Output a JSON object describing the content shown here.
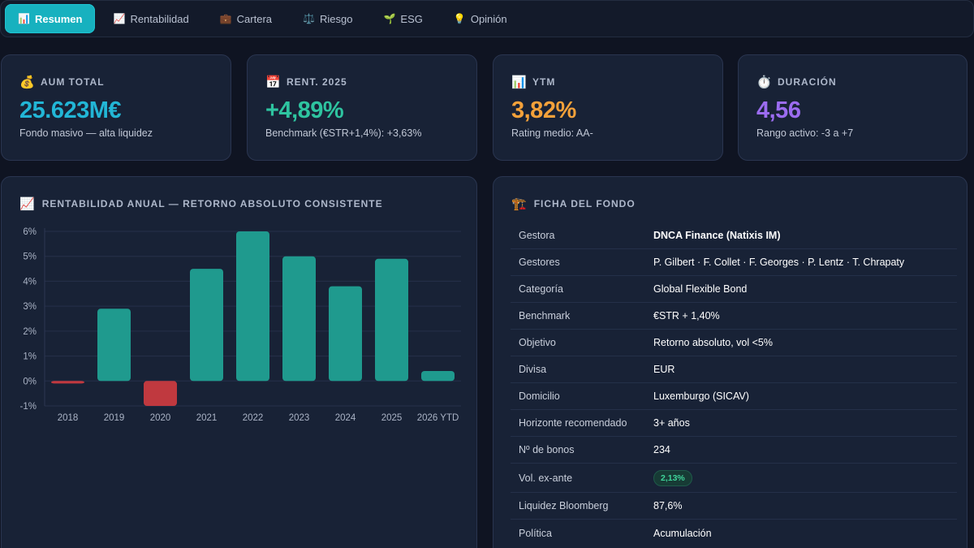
{
  "nav": {
    "tabs": [
      {
        "icon": "📊",
        "label": "Resumen",
        "active": true
      },
      {
        "icon": "📈",
        "label": "Rentabilidad",
        "active": false
      },
      {
        "icon": "💼",
        "label": "Cartera",
        "active": false
      },
      {
        "icon": "⚖️",
        "label": "Riesgo",
        "active": false
      },
      {
        "icon": "🌱",
        "label": "ESG",
        "active": false
      },
      {
        "icon": "💡",
        "label": "Opinión",
        "active": false
      }
    ]
  },
  "kpis": [
    {
      "icon": "💰",
      "label": "AUM TOTAL",
      "value": "25.623M€",
      "sub": "Fondo masivo — alta liquidez",
      "color": "#22b6d6"
    },
    {
      "icon": "📅",
      "label": "RENT. 2025",
      "value": "+4,89%",
      "sub": "Benchmark (€STR+1,4%): +3,63%",
      "color": "#2ec4a0"
    },
    {
      "icon": "📊",
      "label": "YTM",
      "value": "3,82%",
      "sub": "Rating medio: AA-",
      "color": "#f4a13a"
    },
    {
      "icon": "⏱️",
      "label": "DURACIÓN",
      "value": "4,56",
      "sub": "Rango activo: -3 a +7",
      "color": "#9b6cf0"
    }
  ],
  "chart_panel": {
    "icon": "📈",
    "title": "RENTABILIDAD ANUAL — RETORNO ABSOLUTO CONSISTENTE"
  },
  "chart_data": {
    "type": "bar",
    "categories": [
      "2018",
      "2019",
      "2020",
      "2021",
      "2022",
      "2023",
      "2024",
      "2025",
      "2026 YTD"
    ],
    "values": [
      -0.1,
      2.9,
      -1.0,
      4.5,
      6.0,
      5.0,
      3.8,
      4.9,
      0.4
    ],
    "y_ticks": [
      "6%",
      "5%",
      "4%",
      "3%",
      "2%",
      "1%",
      "0%",
      "-1%"
    ],
    "ylim": [
      -1,
      6
    ],
    "grid": true,
    "colors": {
      "positive": "#1f9a8e",
      "negative": "#c0393f"
    }
  },
  "sheet_panel": {
    "icon": "🏗️",
    "title": "FICHA DEL FONDO",
    "rows": [
      {
        "key": "Gestora",
        "value": "DNCA Finance (Natixis IM)",
        "strong": true
      },
      {
        "key": "Gestores",
        "value": "P. Gilbert · F. Collet · F. Georges · P. Lentz · T. Chrapaty"
      },
      {
        "key": "Categoría",
        "value": "Global Flexible Bond"
      },
      {
        "key": "Benchmark",
        "value": "€STR + 1,40%"
      },
      {
        "key": "Objetivo",
        "value": "Retorno absoluto, vol <5%"
      },
      {
        "key": "Divisa",
        "value": "EUR"
      },
      {
        "key": "Domicilio",
        "value": "Luxemburgo (SICAV)"
      },
      {
        "key": "Horizonte recomendado",
        "value": "3+ años"
      },
      {
        "key": "Nº de bonos",
        "value": "234"
      },
      {
        "key": "Vol. ex-ante",
        "value": "2,13%",
        "badge": true
      },
      {
        "key": "Liquidez Bloomberg",
        "value": "87,6%"
      },
      {
        "key": "Política",
        "value": "Acumulación"
      }
    ]
  }
}
